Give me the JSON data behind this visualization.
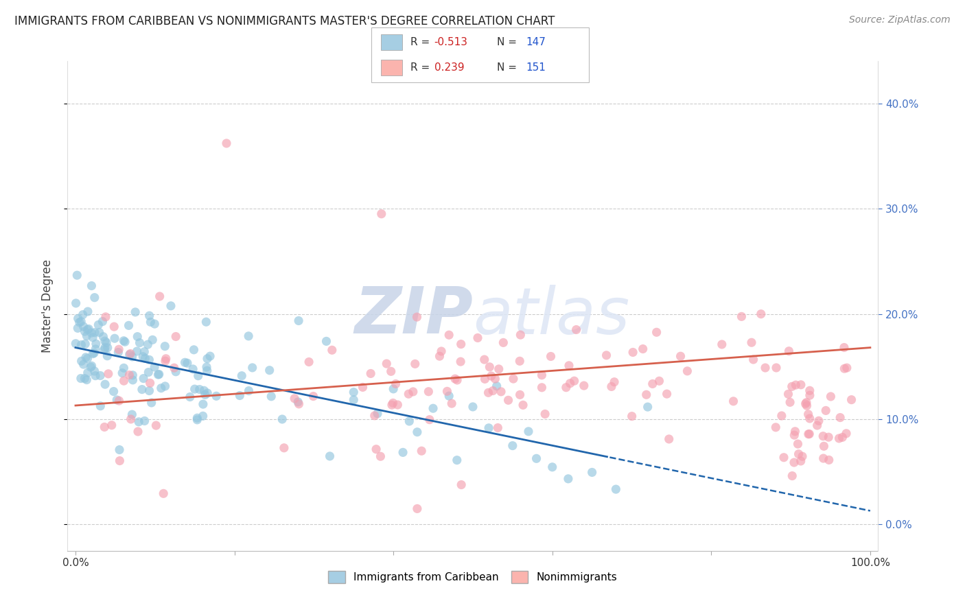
{
  "title": "IMMIGRANTS FROM CARIBBEAN VS NONIMMIGRANTS MASTER'S DEGREE CORRELATION CHART",
  "source": "Source: ZipAtlas.com",
  "ylabel": "Master's Degree",
  "legend_label1": "Immigrants from Caribbean",
  "legend_label2": "Nonimmigrants",
  "r1": -0.513,
  "n1": 147,
  "r2": 0.239,
  "n2": 151,
  "blue_color": "#92c5de",
  "blue_line_color": "#2166ac",
  "pink_color": "#f4a0b0",
  "pink_line_color": "#d6604d",
  "legend_box_blue": "#a6cee3",
  "legend_box_pink": "#fbb4ae",
  "watermark_color": "#dde4f0",
  "background_color": "#ffffff",
  "grid_color": "#cccccc",
  "title_color": "#222222",
  "right_axis_color": "#4472c4",
  "figsize": [
    14.06,
    8.92
  ],
  "dpi": 100,
  "xlim": [
    -0.01,
    1.01
  ],
  "ylim": [
    -0.025,
    0.44
  ],
  "yticks": [
    0.0,
    0.1,
    0.2,
    0.3,
    0.4
  ],
  "ytick_labels": [
    "0.0%",
    "10.0%",
    "20.0%",
    "30.0%",
    "40.0%"
  ]
}
